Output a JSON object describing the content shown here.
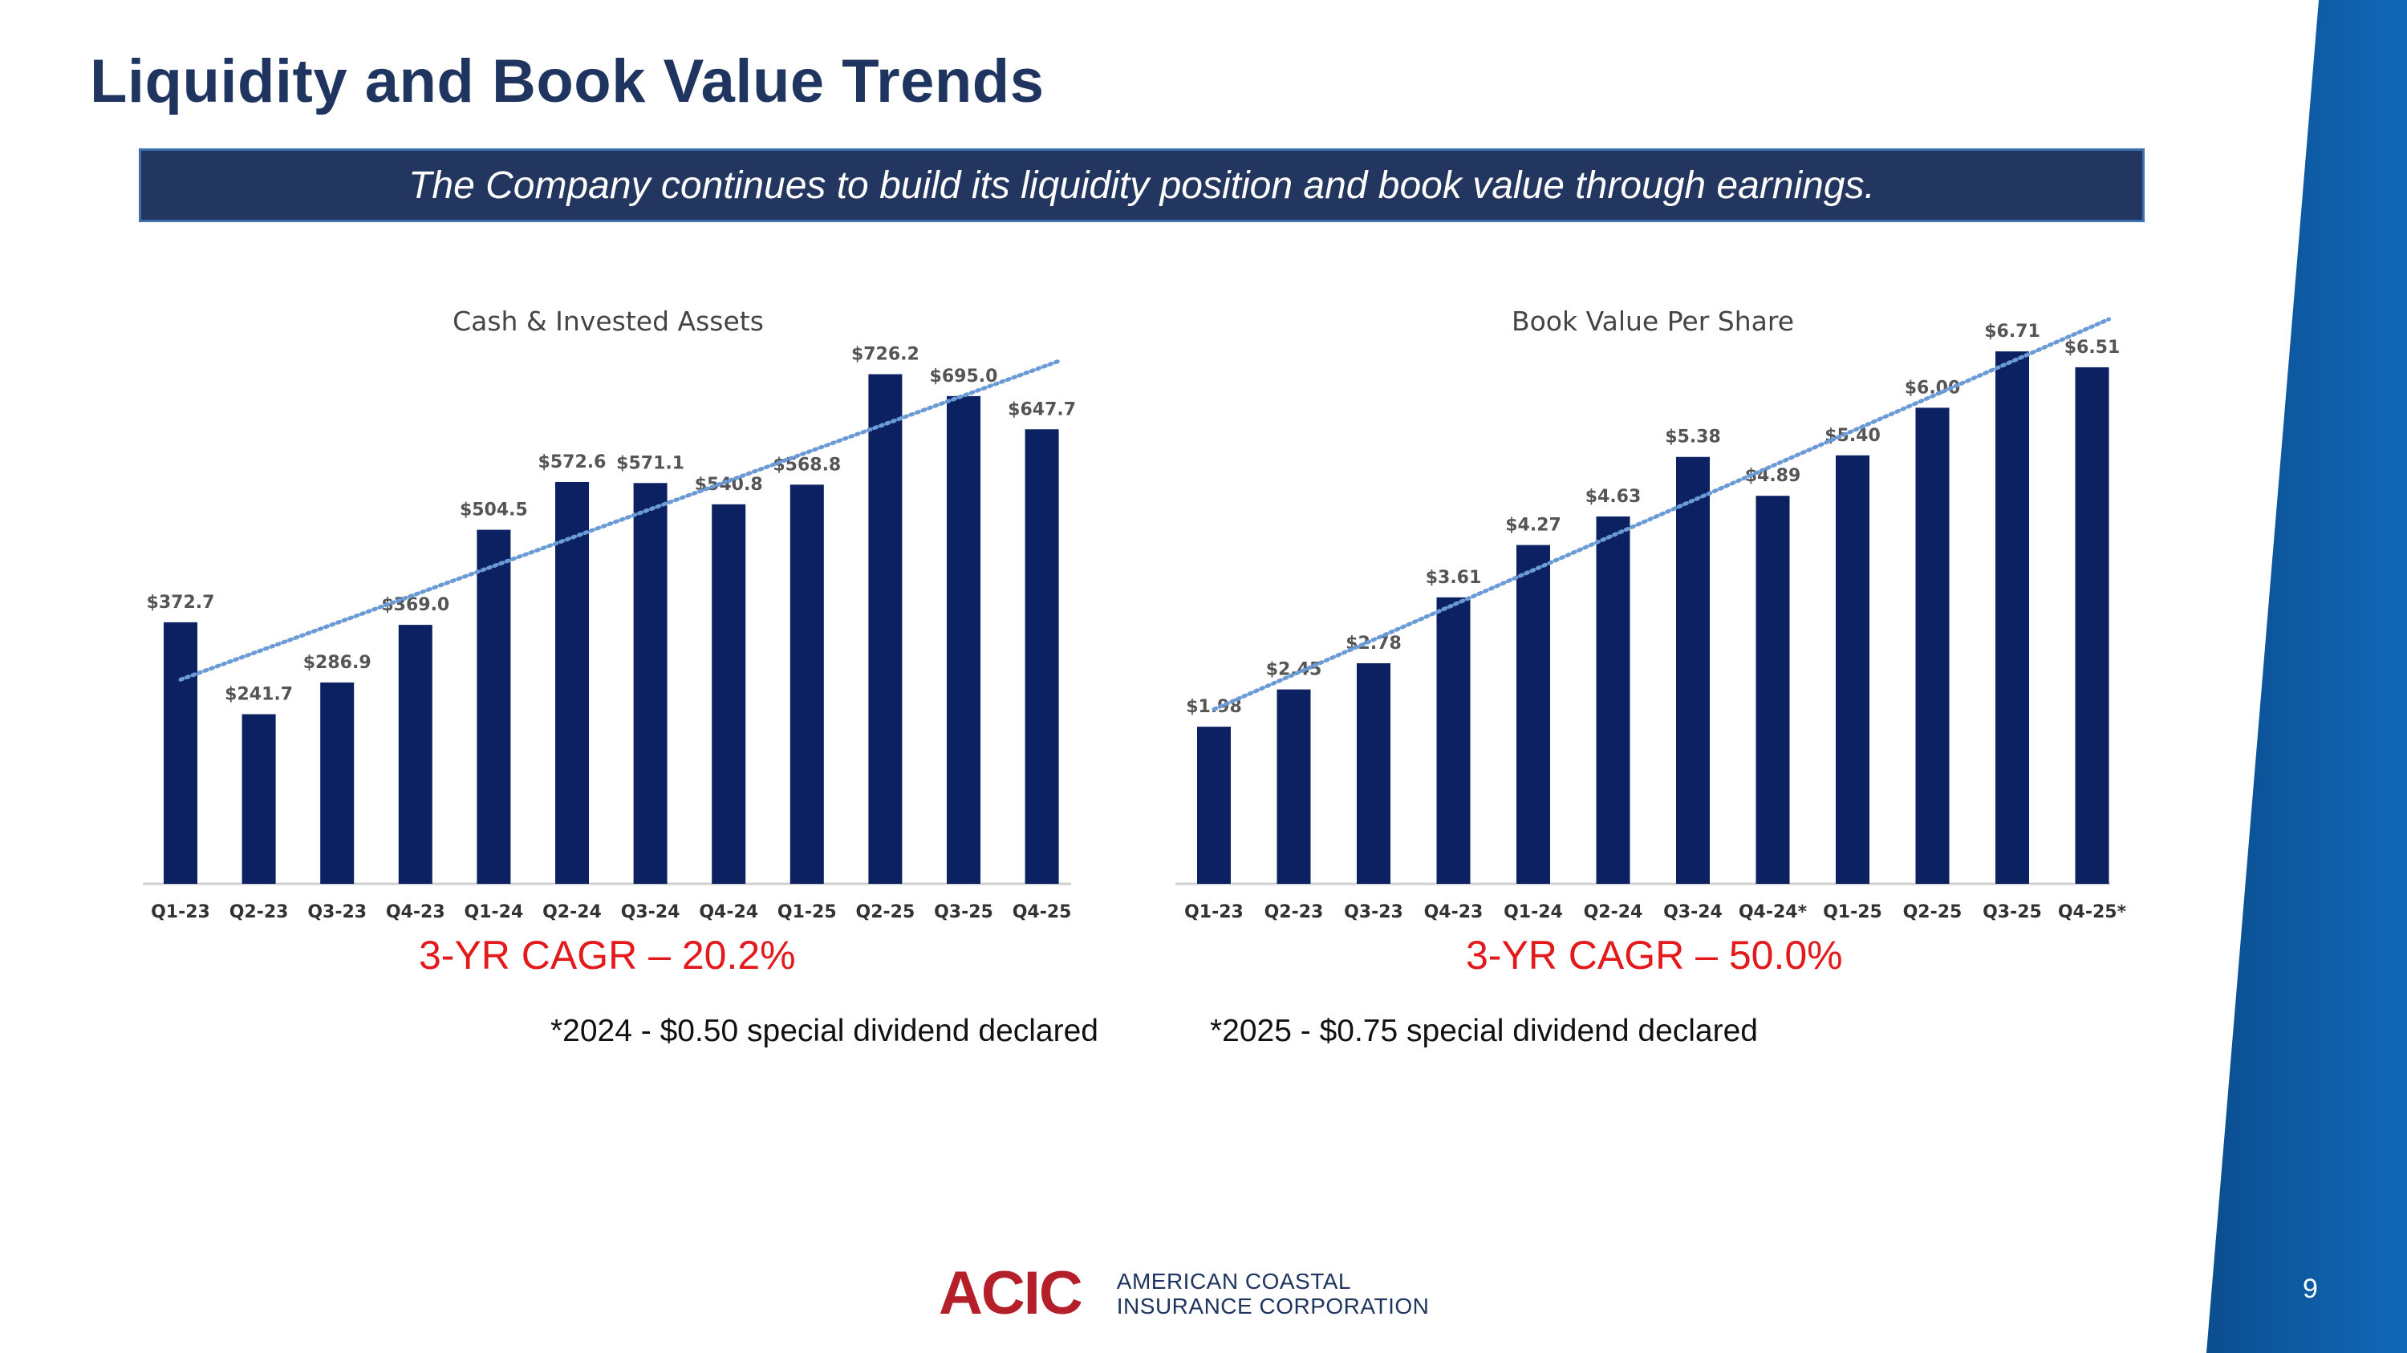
{
  "slide": {
    "title": "Liquidity and Book Value Trends",
    "banner": "The Company continues to build its liquidity position and book value through earnings.",
    "page_number": "9",
    "colors": {
      "navy": "#1f3560",
      "bar": "#0b2161",
      "accent_red": "#e31a1c",
      "band_blue": "#0d5da8"
    }
  },
  "left_panel": {
    "cagr": "3-YR CAGR – 20.2%",
    "footnote": "*2024 - $0.50 special dividend declared"
  },
  "right_panel": {
    "cagr": "3-YR CAGR – 50.0%",
    "footnote": "*2025 - $0.75 special dividend declared"
  },
  "logo": {
    "mark": "ACIC",
    "line1": "AMERICAN COASTAL",
    "line2": "INSURANCE CORPORATION"
  },
  "chart_data": [
    {
      "type": "bar",
      "title": "Cash & Invested Assets",
      "categories": [
        "Q1-23",
        "Q2-23",
        "Q3-23",
        "Q4-23",
        "Q1-24",
        "Q2-24",
        "Q3-24",
        "Q4-24",
        "Q1-25",
        "Q2-25",
        "Q3-25",
        "Q4-25"
      ],
      "values": [
        372.7,
        241.7,
        286.9,
        369.0,
        504.5,
        572.6,
        571.1,
        540.8,
        568.8,
        726.2,
        695.0,
        647.7
      ],
      "labels": [
        "$372.7",
        "$241.7",
        "$286.9",
        "$369.0",
        "$504.5",
        "$572.6",
        "$571.1",
        "$540.8",
        "$568.8",
        "$726.2",
        "$695.0",
        "$647.7"
      ],
      "ylim": [
        0,
        800
      ],
      "trendline": "linear, dotted",
      "grid": false,
      "bar_color": "#0b2161",
      "trend_color": "#6b9bd6"
    },
    {
      "type": "bar",
      "title": "Book Value Per Share",
      "categories": [
        "Q1-23",
        "Q2-23",
        "Q3-23",
        "Q4-23",
        "Q1-24",
        "Q2-24",
        "Q3-24",
        "Q4-24*",
        "Q1-25",
        "Q2-25",
        "Q3-25",
        "Q4-25*"
      ],
      "values": [
        1.98,
        2.45,
        2.78,
        3.61,
        4.27,
        4.63,
        5.38,
        4.89,
        5.4,
        6.0,
        6.71,
        6.51
      ],
      "labels": [
        "$1.98",
        "$2.45",
        "$2.78",
        "$3.61",
        "$4.27",
        "$4.63",
        "$5.38",
        "$4.89",
        "$5.40",
        "$6.00",
        "$6.71",
        "$6.51"
      ],
      "ylim": [
        0,
        7.5
      ],
      "trendline": "linear, dotted",
      "grid": false,
      "bar_color": "#0b2161",
      "trend_color": "#6b9bd6"
    }
  ]
}
